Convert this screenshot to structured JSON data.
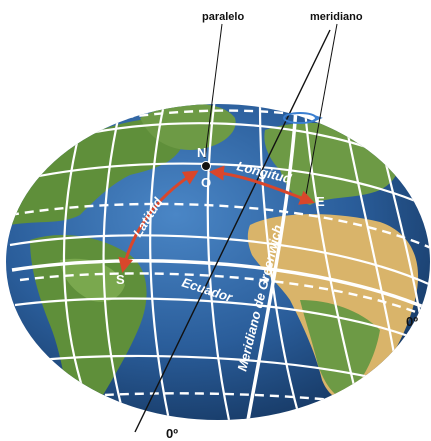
{
  "labels": {
    "paralelo": "paralelo",
    "meridiano": "meridiano",
    "point_n": "N",
    "point_o": "O",
    "point_e": "E",
    "point_s": "S",
    "latitud": "Latitud",
    "longitud": "Longitud",
    "ecuador": "Ecuador",
    "greenwich": "Meridiano de Greenwich",
    "deg_bottom": "0º",
    "deg_right": "0º"
  },
  "colors": {
    "ocean": "#2a5d9a",
    "land_green": "#5f8f3a",
    "land_desert": "#d9b46a",
    "grid": "#ffffff",
    "arrow": "#d9462b",
    "axis": "#111111"
  }
}
